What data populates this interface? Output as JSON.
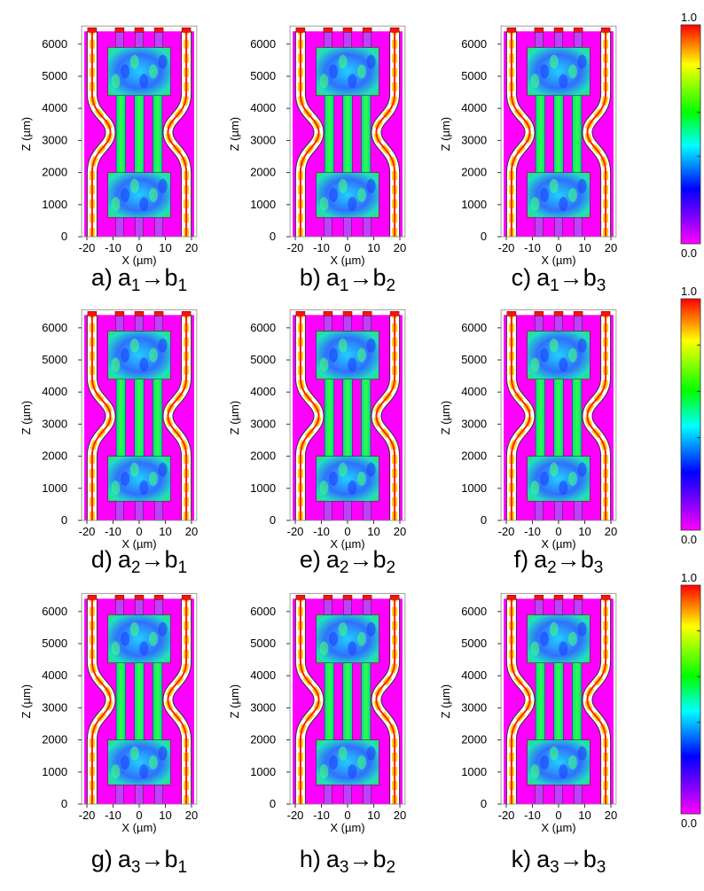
{
  "axes": {
    "xlabel": "X (µm)",
    "ylabel": "Z (µm)",
    "xticks": [
      "-20",
      "-10",
      "0",
      "10",
      "20"
    ],
    "yticks": [
      "0",
      "1000",
      "2000",
      "3000",
      "4000",
      "5000",
      "6000"
    ]
  },
  "arrow": "→",
  "panels": [
    {
      "label": "a)",
      "from": "a",
      "from_sub": "1",
      "to": "b",
      "to_sub": "1"
    },
    {
      "label": "b)",
      "from": "a",
      "from_sub": "1",
      "to": "b",
      "to_sub": "2"
    },
    {
      "label": "c)",
      "from": "a",
      "from_sub": "1",
      "to": "b",
      "to_sub": "3"
    },
    {
      "label": "d)",
      "from": "a",
      "from_sub": "2",
      "to": "b",
      "to_sub": "1"
    },
    {
      "label": "e)",
      "from": "a",
      "from_sub": "2",
      "to": "b",
      "to_sub": "2"
    },
    {
      "label": "f)",
      "from": "a",
      "from_sub": "2",
      "to": "b",
      "to_sub": "3"
    },
    {
      "label": "g)",
      "from": "a",
      "from_sub": "3",
      "to": "b",
      "to_sub": "1"
    },
    {
      "label": "h)",
      "from": "a",
      "from_sub": "3",
      "to": "b",
      "to_sub": "2"
    },
    {
      "label": "k)",
      "from": "a",
      "from_sub": "3",
      "to": "b",
      "to_sub": "3"
    }
  ],
  "colorbars": [
    {
      "max": "1.0",
      "min": "0.0"
    },
    {
      "max": "1.0",
      "min": "0.0"
    },
    {
      "max": "1.0",
      "min": "0.0"
    }
  ]
}
